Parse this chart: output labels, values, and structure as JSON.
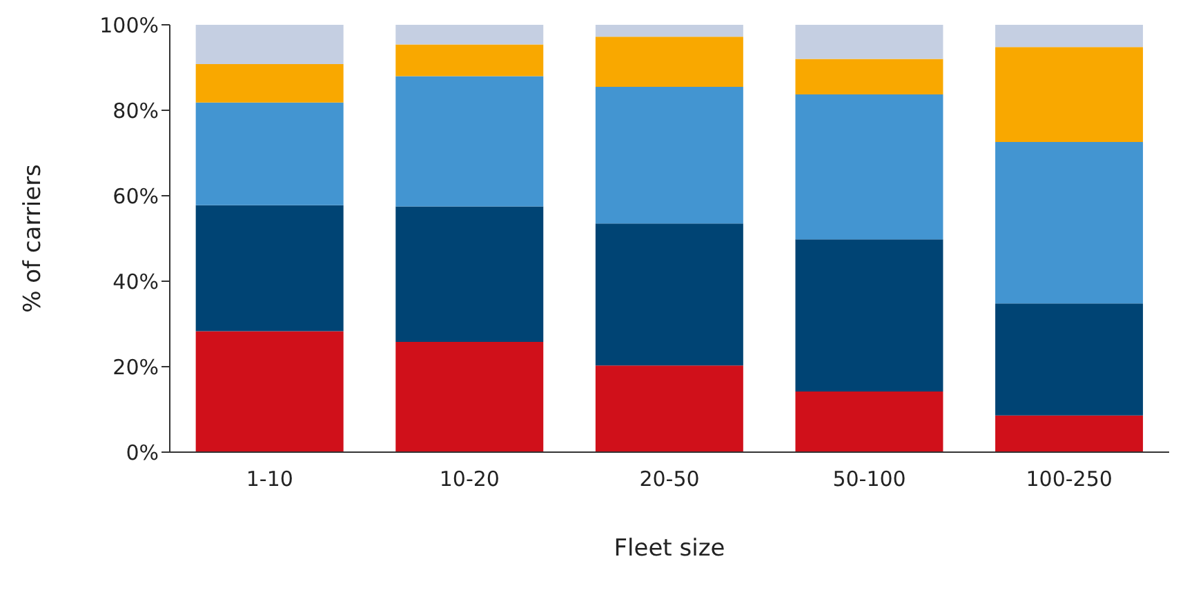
{
  "chart_data": {
    "type": "bar",
    "stacked": true,
    "xlabel": "Fleet size",
    "ylabel": "% of carriers",
    "categories": [
      "1-10",
      "10-20",
      "20-50",
      "50-100",
      "100-250"
    ],
    "series": [
      {
        "color": "#d0101a",
        "values": [
          28.3,
          25.8,
          20.3,
          14.2,
          8.6
        ]
      },
      {
        "color": "#004474",
        "values": [
          29.5,
          31.7,
          33.2,
          35.6,
          26.2
        ]
      },
      {
        "color": "#4395d1",
        "values": [
          24,
          30.5,
          32,
          33.9,
          37.8
        ]
      },
      {
        "color": "#f9a800",
        "values": [
          9,
          7.4,
          11.7,
          8.3,
          22.2
        ]
      },
      {
        "color": "#c5cfe2",
        "values": [
          9.2,
          4.6,
          2.8,
          8,
          5.2
        ]
      }
    ],
    "ylim": [
      0,
      100
    ],
    "yticks": [
      {
        "value": 0,
        "label": "0%"
      },
      {
        "value": 20,
        "label": "20%"
      },
      {
        "value": 40,
        "label": "40%"
      },
      {
        "value": 60,
        "label": "60%"
      },
      {
        "value": 80,
        "label": "80%"
      },
      {
        "value": 100,
        "label": "100%"
      }
    ],
    "grid": false,
    "legend": false
  }
}
